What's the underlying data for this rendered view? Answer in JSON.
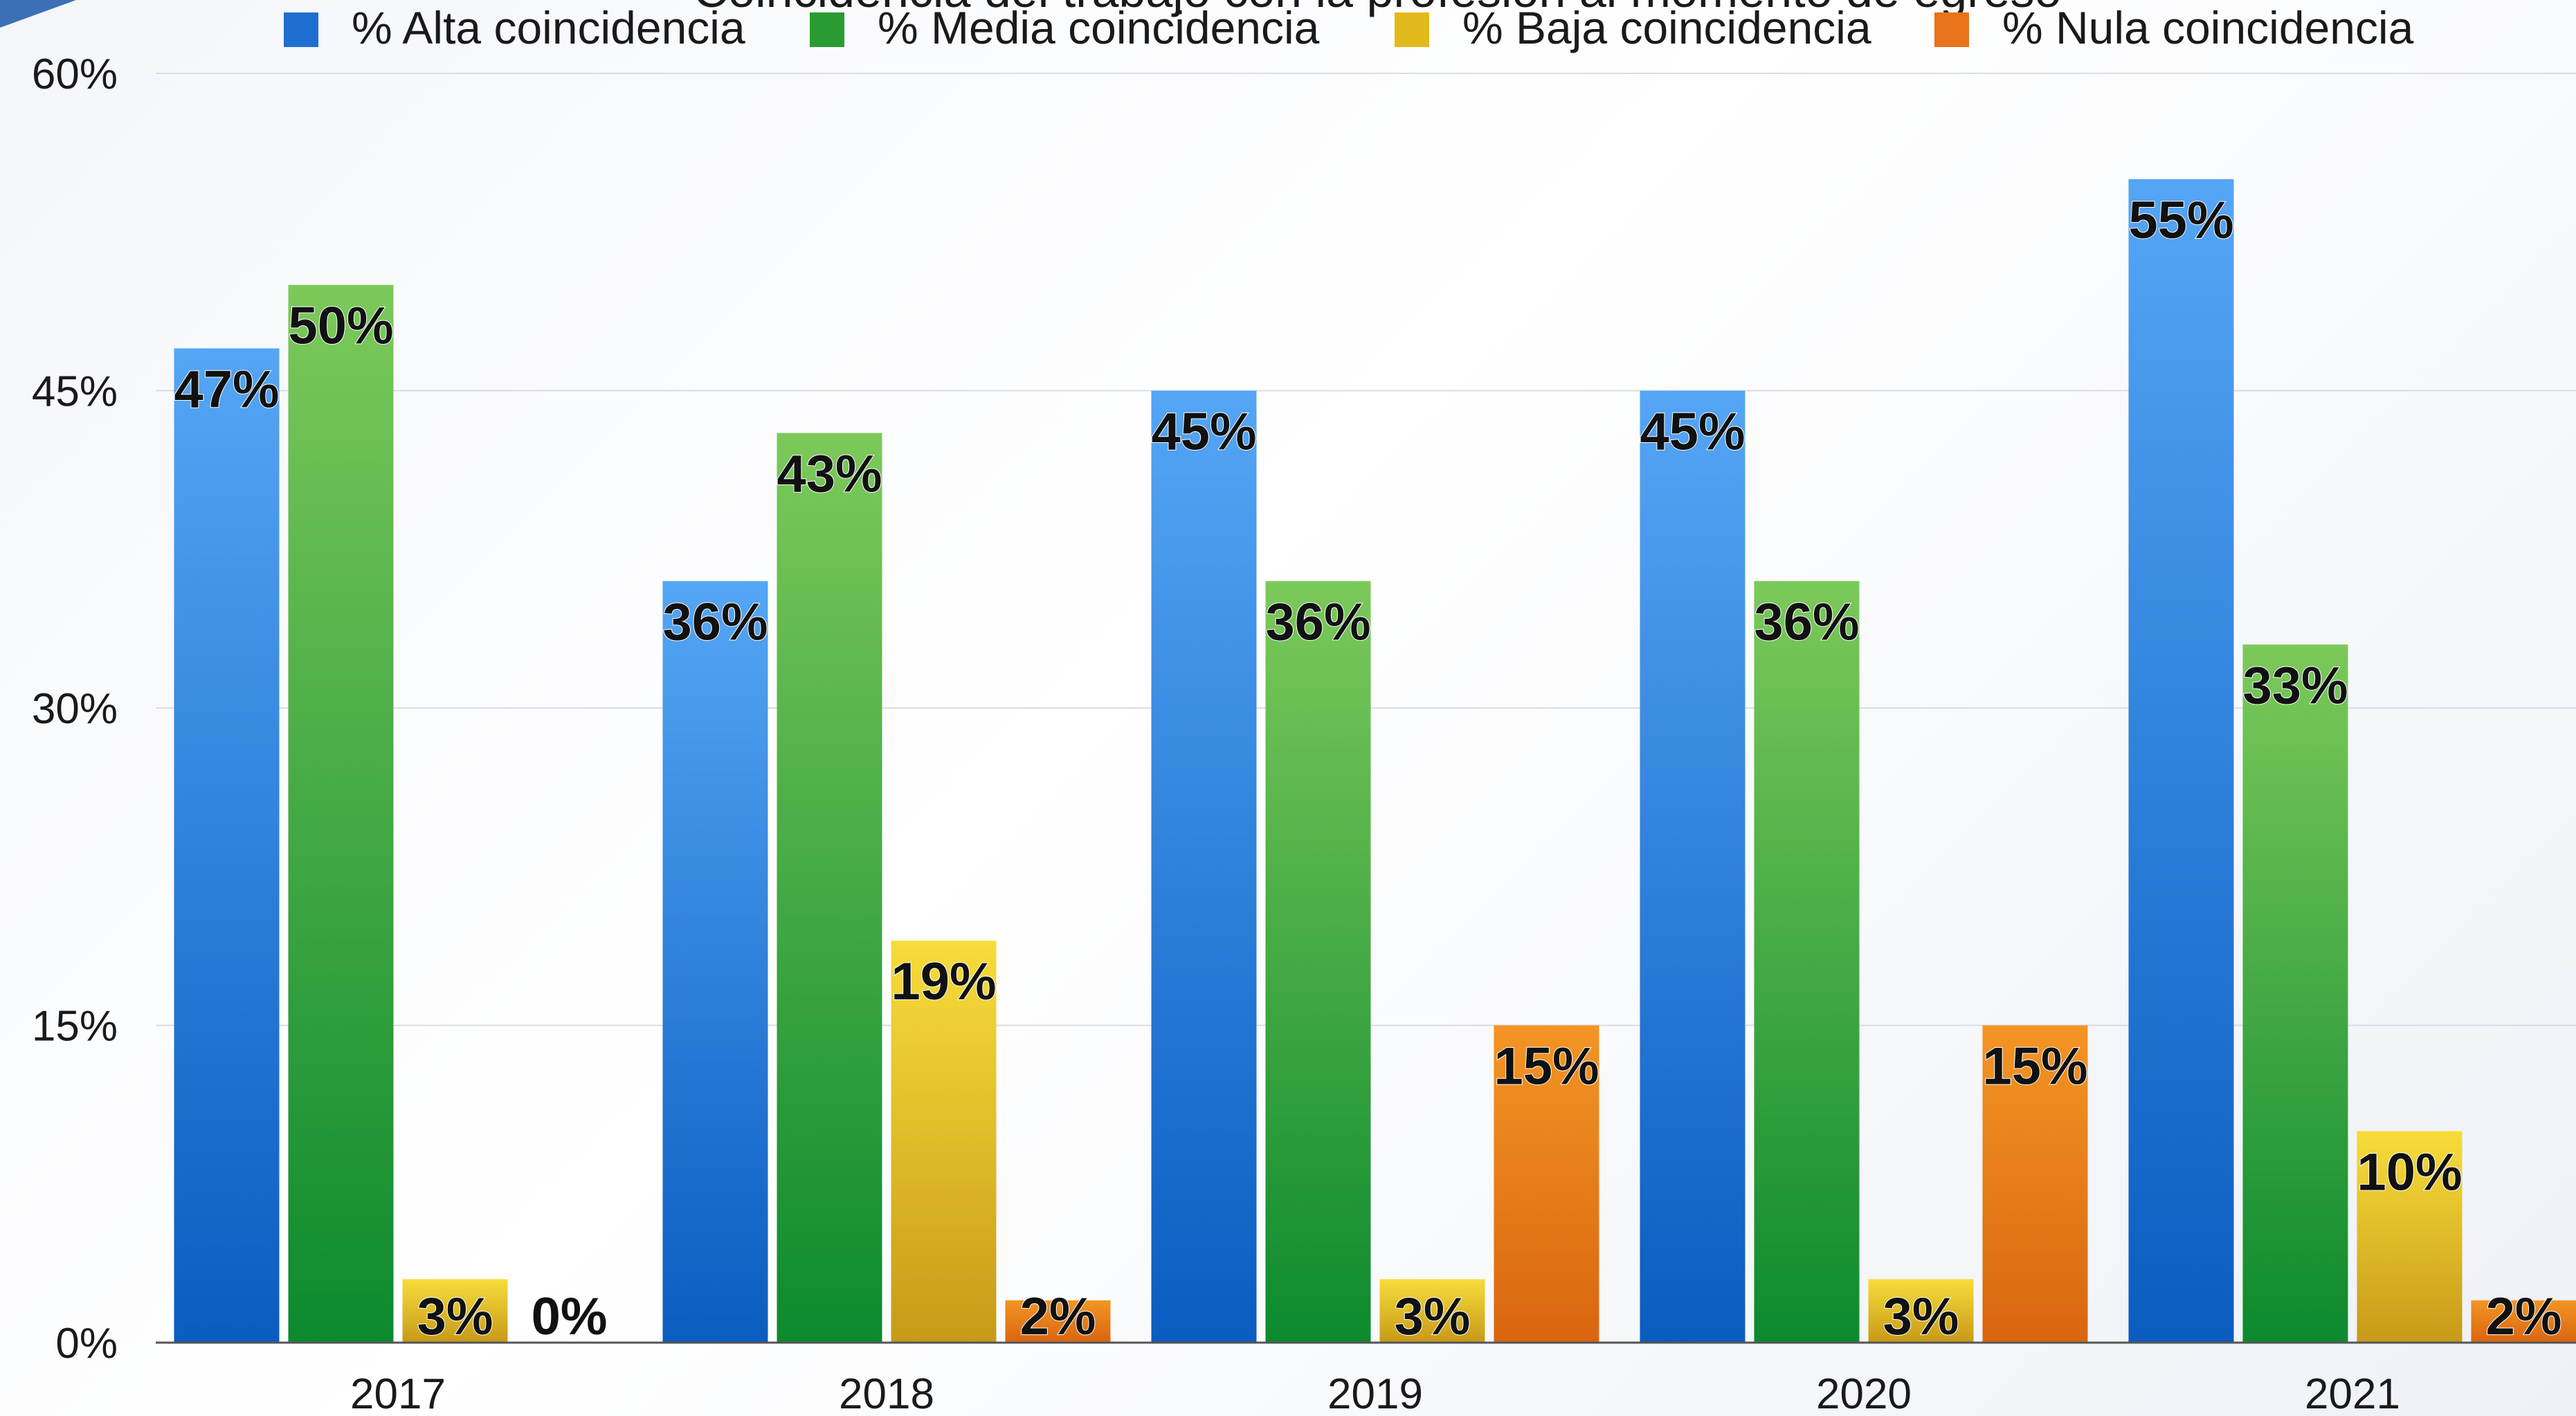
{
  "chart_data": {
    "type": "bar",
    "title": "Coincidencia del trabajo con la profesión al momento de egreso",
    "xlabel": "",
    "ylabel": "",
    "categories": [
      "2017",
      "2018",
      "2019",
      "2020",
      "2021"
    ],
    "series": [
      {
        "name": "% Alta coincidencia",
        "values": [
          47,
          36,
          45,
          45,
          55
        ],
        "labels": [
          "47%",
          "36%",
          "45%",
          "45%",
          "55%"
        ],
        "color": "#2f80d8"
      },
      {
        "name": "% Media  coincidencia",
        "values": [
          50,
          43,
          36,
          36,
          33
        ],
        "labels": [
          "50%",
          "43%",
          "36%",
          "36%",
          "33%"
        ],
        "color": "#3fa83a"
      },
      {
        "name": "% Baja coincidencia",
        "values": [
          3,
          19,
          3,
          3,
          10
        ],
        "labels": [
          "3%",
          "19%",
          "3%",
          "3%",
          "10%"
        ],
        "color": "#e8c21c"
      },
      {
        "name": "% Nula coincidencia",
        "values": [
          0,
          2,
          15,
          15,
          2
        ],
        "labels": [
          "0%",
          "2%",
          "15%",
          "15%",
          "2%"
        ],
        "color": "#e9771a"
      }
    ],
    "ylim": [
      0,
      60
    ],
    "yticks": [
      "0%",
      "15%",
      "30%",
      "45%",
      "60%"
    ],
    "ytick_values": [
      0,
      15,
      30,
      45,
      60
    ],
    "grid": true,
    "legend_position": "top"
  }
}
